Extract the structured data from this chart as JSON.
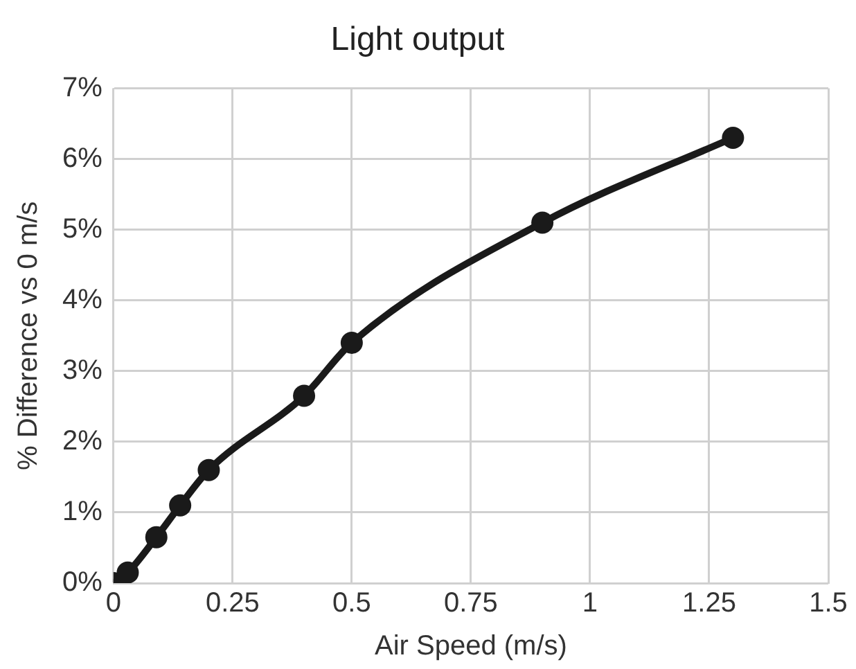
{
  "chart_data": {
    "type": "line",
    "title": "Light output",
    "xlabel": "Air Speed (m/s)",
    "ylabel": "% Difference vs 0 m/s",
    "x": [
      0,
      0.03,
      0.09,
      0.14,
      0.2,
      0.4,
      0.5,
      0.9,
      1.3
    ],
    "series": [
      {
        "color": "#1a1a1a",
        "values": [
          0,
          0.15,
          0.65,
          1.1,
          1.6,
          2.65,
          3.4,
          5.1,
          6.3
        ]
      }
    ],
    "xlim": [
      0,
      1.5
    ],
    "xticks": [
      0,
      0.25,
      0.5,
      0.75,
      1,
      1.25,
      1.5
    ],
    "ylim": [
      0,
      7
    ],
    "yticks": [
      {
        "value": 0,
        "label": "0%"
      },
      {
        "value": 1,
        "label": "1%"
      },
      {
        "value": 2,
        "label": "2%"
      },
      {
        "value": 3,
        "label": "3%"
      },
      {
        "value": 4,
        "label": "4%"
      },
      {
        "value": 5,
        "label": "5%"
      },
      {
        "value": 6,
        "label": "6%"
      },
      {
        "value": 7,
        "label": "7%"
      }
    ],
    "grid": true,
    "legend": false,
    "marker": "circle",
    "line_style": "solid"
  }
}
